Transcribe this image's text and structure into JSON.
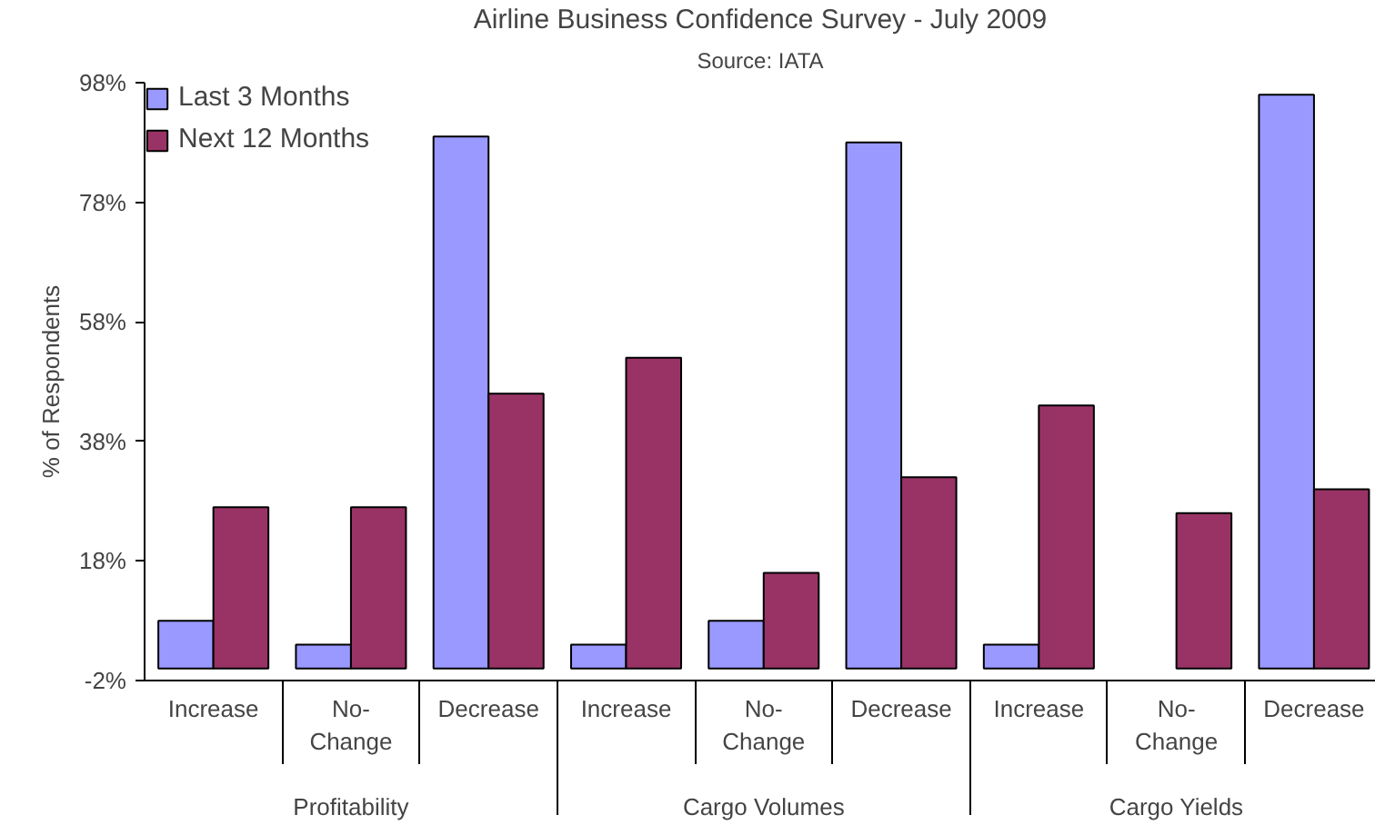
{
  "chart_data": {
    "type": "bar",
    "title": "Airline Business Confidence Survey - July 2009",
    "subtitle": "Source: IATA",
    "ylabel": "% of Respondents",
    "categories": [
      "Increase",
      "No-Change",
      "Decrease",
      "Increase",
      "No-Change",
      "Decrease",
      "Increase",
      "No-Change",
      "Decrease"
    ],
    "annotations": [
      "Profitability",
      "Cargo Volumes",
      "Cargo Yields"
    ],
    "series": [
      {
        "name": "Last 3 Months",
        "color": "#9999ff",
        "values": [
          8,
          4,
          89,
          4,
          8,
          88,
          4,
          0,
          96
        ]
      },
      {
        "name": "Next 12 Months",
        "color": "#993366",
        "values": [
          27,
          27,
          46,
          52,
          16,
          32,
          44,
          26,
          30
        ]
      }
    ],
    "ylim": [
      -2,
      98
    ],
    "yticks": [
      {
        "value": -2,
        "label": "-2%"
      },
      {
        "value": 18,
        "label": "18%"
      },
      {
        "value": 38,
        "label": "38%"
      },
      {
        "value": 58,
        "label": "58%"
      },
      {
        "value": 78,
        "label": "78%"
      },
      {
        "value": 98,
        "label": "98%"
      }
    ],
    "grid": false,
    "legend": "top left"
  }
}
